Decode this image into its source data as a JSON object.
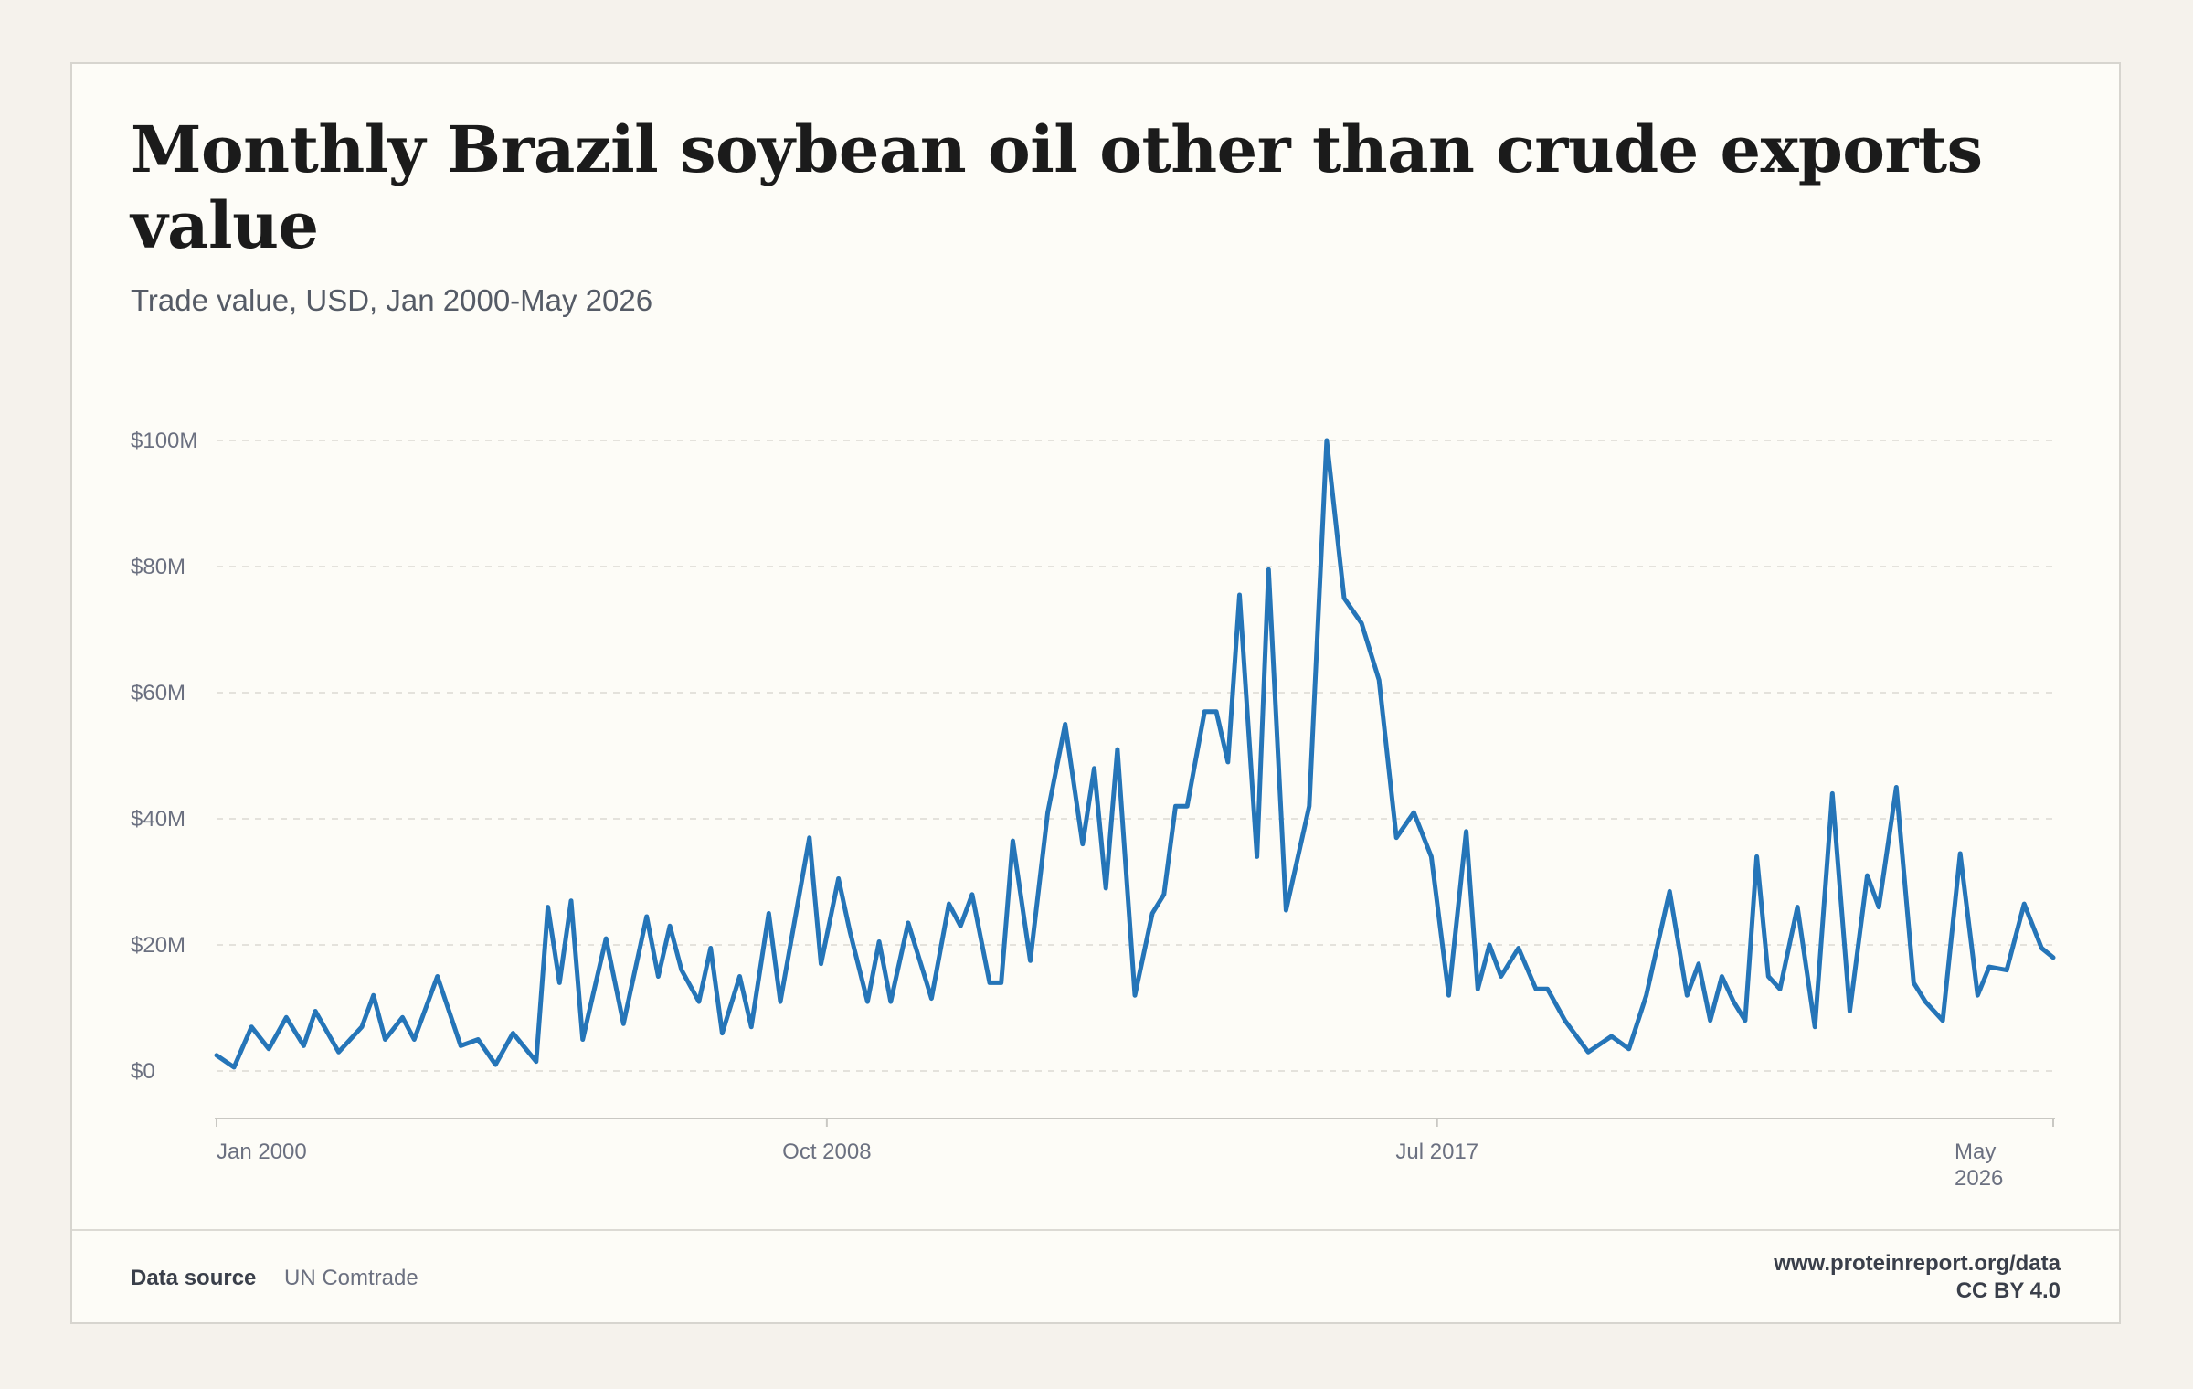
{
  "title": "Monthly Brazil soybean oil other than crude exports value",
  "subtitle": "Trade value, USD, Jan 2000-May 2026",
  "footer": {
    "source_label": "Data source",
    "source_value": "UN Comtrade",
    "site": "www.proteinreport.org/data",
    "license": "CC BY 4.0"
  },
  "chart_data": {
    "type": "line",
    "title": "Monthly Brazil soybean oil other than crude exports value",
    "subtitle": "Trade value, USD, Jan 2000-May 2026",
    "xlabel": "",
    "ylabel": "",
    "x_range": [
      "2000-01",
      "2026-05"
    ],
    "ylim": [
      0,
      100
    ],
    "y_unit": "USD millions",
    "y_ticks": [
      0,
      20,
      40,
      60,
      80,
      100
    ],
    "y_tick_labels": [
      "$0",
      "$20M",
      "$40M",
      "$60M",
      "$80M",
      "$100M"
    ],
    "x_ticks": [
      "2000-01",
      "2008-10",
      "2017-07",
      "2026-05"
    ],
    "x_tick_labels": [
      "Jan 2000",
      "Oct 2008",
      "Jul 2017",
      "May 2026"
    ],
    "grid": "horizontal dashed",
    "line_color": "#2575b8",
    "series": [
      {
        "name": "",
        "points": [
          [
            "2000-01",
            2.5
          ],
          [
            "2000-04",
            0.6
          ],
          [
            "2000-07",
            7.0
          ],
          [
            "2000-10",
            3.5
          ],
          [
            "2001-01",
            8.5
          ],
          [
            "2001-04",
            4.0
          ],
          [
            "2001-06",
            9.5
          ],
          [
            "2001-10",
            3.0
          ],
          [
            "2002-02",
            7.0
          ],
          [
            "2002-04",
            12.0
          ],
          [
            "2002-06",
            5.0
          ],
          [
            "2002-09",
            8.5
          ],
          [
            "2002-11",
            5.0
          ],
          [
            "2003-03",
            15.0
          ],
          [
            "2003-07",
            4.0
          ],
          [
            "2003-10",
            5.0
          ],
          [
            "2004-01",
            1.0
          ],
          [
            "2004-04",
            6.0
          ],
          [
            "2004-08",
            1.5
          ],
          [
            "2004-10",
            26.0
          ],
          [
            "2004-12",
            14.0
          ],
          [
            "2005-02",
            27.0
          ],
          [
            "2005-04",
            5.0
          ],
          [
            "2005-08",
            21.0
          ],
          [
            "2005-11",
            7.5
          ],
          [
            "2006-03",
            24.5
          ],
          [
            "2006-05",
            15.0
          ],
          [
            "2006-07",
            23.0
          ],
          [
            "2006-09",
            16.0
          ],
          [
            "2006-12",
            11.0
          ],
          [
            "2007-02",
            19.5
          ],
          [
            "2007-04",
            6.0
          ],
          [
            "2007-07",
            15.0
          ],
          [
            "2007-09",
            7.0
          ],
          [
            "2007-12",
            25.0
          ],
          [
            "2008-02",
            11.0
          ],
          [
            "2008-07",
            37.0
          ],
          [
            "2008-09",
            17.0
          ],
          [
            "2008-12",
            30.5
          ],
          [
            "2009-02",
            22.0
          ],
          [
            "2009-05",
            11.0
          ],
          [
            "2009-07",
            20.5
          ],
          [
            "2009-09",
            11.0
          ],
          [
            "2009-12",
            23.5
          ],
          [
            "2010-04",
            11.5
          ],
          [
            "2010-07",
            26.5
          ],
          [
            "2010-09",
            23.0
          ],
          [
            "2010-11",
            28.0
          ],
          [
            "2011-02",
            14.0
          ],
          [
            "2011-04",
            14.0
          ],
          [
            "2011-06",
            36.5
          ],
          [
            "2011-09",
            17.5
          ],
          [
            "2011-12",
            41.0
          ],
          [
            "2012-03",
            55.0
          ],
          [
            "2012-06",
            36.0
          ],
          [
            "2012-08",
            48.0
          ],
          [
            "2012-10",
            29.0
          ],
          [
            "2012-12",
            51.0
          ],
          [
            "2013-03",
            12.0
          ],
          [
            "2013-06",
            25.0
          ],
          [
            "2013-08",
            28.0
          ],
          [
            "2013-10",
            42.0
          ],
          [
            "2013-12",
            42.0
          ],
          [
            "2014-03",
            57.0
          ],
          [
            "2014-05",
            57.0
          ],
          [
            "2014-07",
            49.0
          ],
          [
            "2014-09",
            75.5
          ],
          [
            "2014-12",
            34.0
          ],
          [
            "2015-02",
            79.5
          ],
          [
            "2015-05",
            25.5
          ],
          [
            "2015-09",
            42.0
          ],
          [
            "2015-12",
            100.0
          ],
          [
            "2016-03",
            75.0
          ],
          [
            "2016-06",
            71.0
          ],
          [
            "2016-09",
            62.0
          ],
          [
            "2016-12",
            37.0
          ],
          [
            "2017-03",
            41.0
          ],
          [
            "2017-06",
            34.0
          ],
          [
            "2017-09",
            12.0
          ],
          [
            "2017-12",
            38.0
          ],
          [
            "2018-02",
            13.0
          ],
          [
            "2018-04",
            20.0
          ],
          [
            "2018-06",
            15.0
          ],
          [
            "2018-09",
            19.5
          ],
          [
            "2018-12",
            13.0
          ],
          [
            "2019-02",
            13.0
          ],
          [
            "2019-05",
            8.0
          ],
          [
            "2019-09",
            3.0
          ],
          [
            "2020-01",
            5.5
          ],
          [
            "2020-04",
            3.5
          ],
          [
            "2020-07",
            12.0
          ],
          [
            "2020-11",
            28.5
          ],
          [
            "2021-02",
            12.0
          ],
          [
            "2021-04",
            17.0
          ],
          [
            "2021-06",
            8.0
          ],
          [
            "2021-08",
            15.0
          ],
          [
            "2021-10",
            11.0
          ],
          [
            "2021-12",
            8.0
          ],
          [
            "2022-02",
            34.0
          ],
          [
            "2022-04",
            15.0
          ],
          [
            "2022-06",
            13.0
          ],
          [
            "2022-09",
            26.0
          ],
          [
            "2022-12",
            7.0
          ],
          [
            "2023-03",
            44.0
          ],
          [
            "2023-06",
            9.5
          ],
          [
            "2023-09",
            31.0
          ],
          [
            "2023-11",
            26.0
          ],
          [
            "2024-02",
            45.0
          ],
          [
            "2024-05",
            14.0
          ],
          [
            "2024-07",
            11.0
          ],
          [
            "2024-10",
            8.0
          ],
          [
            "2025-01",
            34.5
          ],
          [
            "2025-04",
            12.0
          ],
          [
            "2025-06",
            16.5
          ],
          [
            "2025-09",
            16.0
          ],
          [
            "2025-12",
            26.5
          ],
          [
            "2026-03",
            19.5
          ],
          [
            "2026-05",
            18.0
          ]
        ]
      }
    ]
  }
}
